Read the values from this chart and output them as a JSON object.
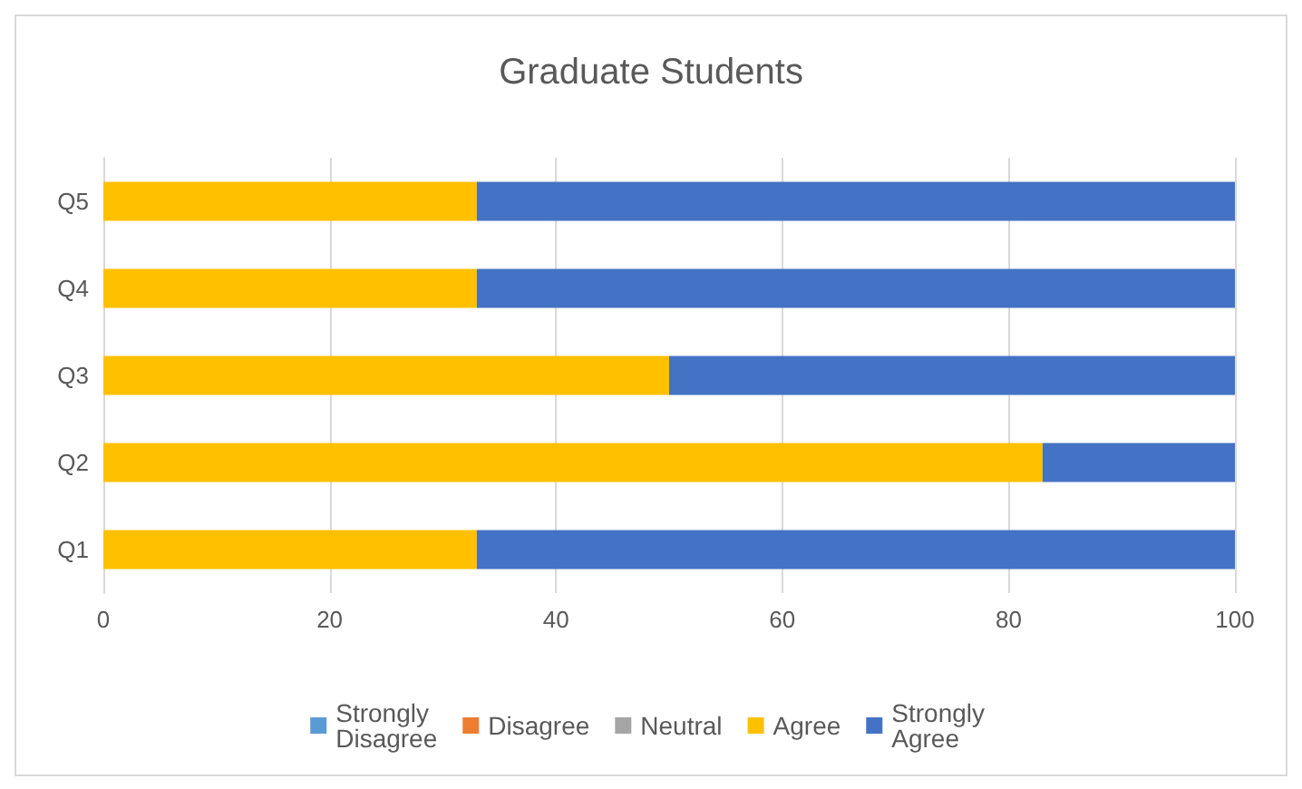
{
  "chart_data": {
    "type": "bar",
    "orientation": "horizontal",
    "stacked": true,
    "title": "Graduate Students",
    "categories": [
      "Q5",
      "Q4",
      "Q3",
      "Q2",
      "Q1"
    ],
    "series": [
      {
        "name": "Strongly Disagree",
        "color": "#5b9bd5",
        "values": [
          0,
          0,
          0,
          0,
          0
        ]
      },
      {
        "name": "Disagree",
        "color": "#ed7d31",
        "values": [
          0,
          0,
          0,
          0,
          0
        ]
      },
      {
        "name": "Neutral",
        "color": "#a5a5a5",
        "values": [
          0,
          0,
          0,
          0,
          0
        ]
      },
      {
        "name": "Agree",
        "color": "#ffc000",
        "values": [
          33,
          33,
          50,
          83,
          33
        ]
      },
      {
        "name": "Strongly Agree",
        "color": "#4472c4",
        "values": [
          67,
          67,
          50,
          17,
          67
        ]
      }
    ],
    "xlim": [
      0,
      100
    ],
    "xticks": [
      0,
      20,
      40,
      60,
      80,
      100
    ],
    "grid": "x",
    "legend": "bottom"
  }
}
